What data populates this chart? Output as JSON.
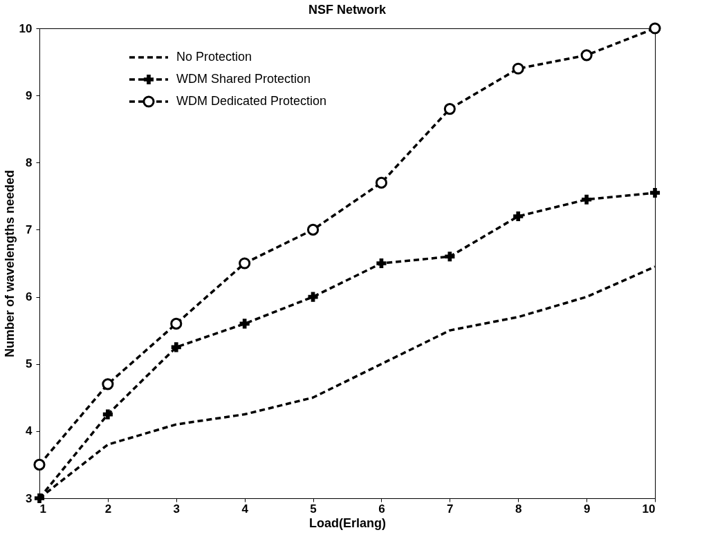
{
  "chart_data": {
    "type": "line",
    "title": "NSF Network",
    "xlabel": "Load(Erlang)",
    "ylabel": "Number of wavelengths needed",
    "x": [
      1,
      2,
      3,
      4,
      5,
      6,
      7,
      8,
      9,
      10
    ],
    "xlim": [
      1,
      10
    ],
    "xticks": [
      1,
      2,
      3,
      4,
      5,
      6,
      7,
      8,
      9,
      10
    ],
    "ylim": [
      3,
      10
    ],
    "yticks": [
      3,
      4,
      5,
      6,
      7,
      8,
      9,
      10
    ],
    "grid": false,
    "legend": "top left",
    "line_style": "dashed",
    "series": [
      {
        "name": "No Protection",
        "color": "#000000",
        "marker": "none",
        "values": [
          3.0,
          3.8,
          4.1,
          4.25,
          4.5,
          5.0,
          5.5,
          5.7,
          6.0,
          6.45
        ]
      },
      {
        "name": "WDM Shared Protection",
        "color": "#000000",
        "marker": "cross",
        "values": [
          3.0,
          4.25,
          5.25,
          5.6,
          6.0,
          6.5,
          6.6,
          7.2,
          7.45,
          7.55
        ]
      },
      {
        "name": "WDM Dedicated Protection",
        "color": "#000000",
        "marker": "circle",
        "values": [
          3.5,
          4.7,
          5.6,
          6.5,
          7.0,
          7.7,
          8.8,
          9.4,
          9.6,
          10.0
        ]
      }
    ]
  }
}
